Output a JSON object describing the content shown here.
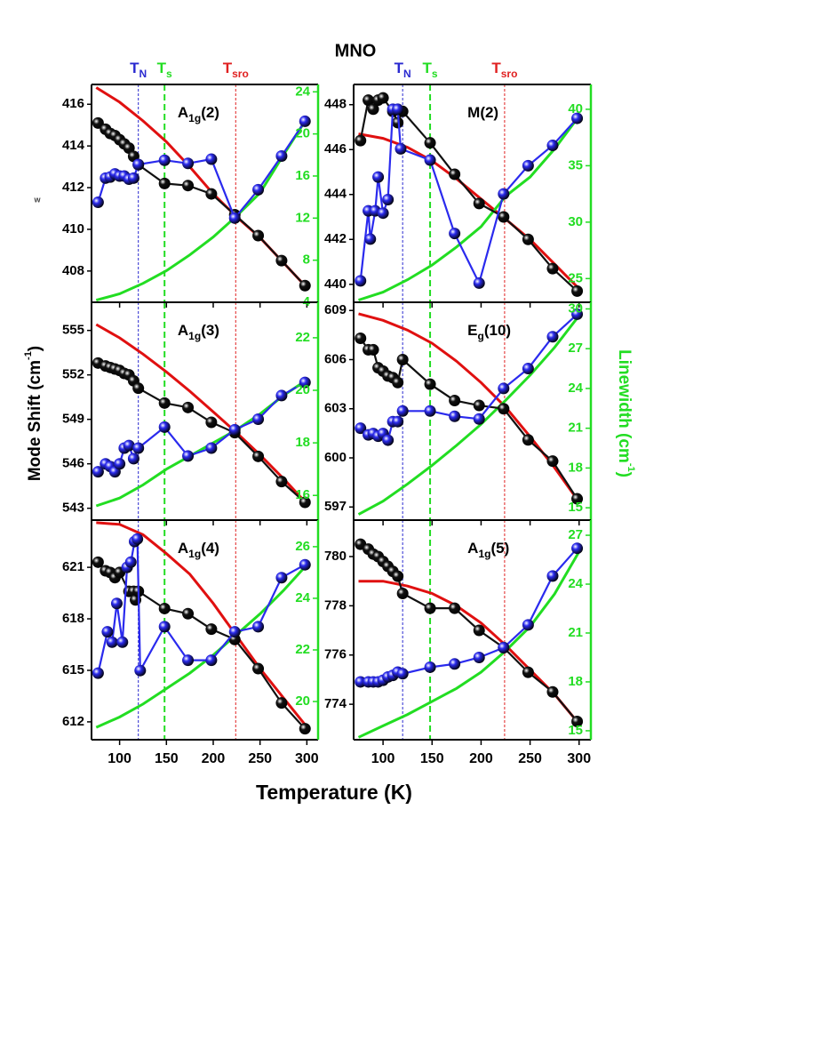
{
  "title": "MNO",
  "x_label": "Temperature (K)",
  "y_label": {
    "text": "Mode Shift (cm",
    "sup": "-1",
    "end": ")"
  },
  "y2_label": {
    "text": "Linewidth (cm",
    "sup": "-1",
    "end": ")"
  },
  "annotation": "w",
  "markers": [
    {
      "label": {
        "text": "T",
        "sub": "N"
      },
      "value": 120,
      "color": "#2a2ad0",
      "width": 1
    },
    {
      "label": {
        "text": "T",
        "sub": "s"
      },
      "value": 148,
      "color": "#22dd22",
      "width": 2
    },
    {
      "label": {
        "text": "T",
        "sub": "sro"
      },
      "value": 224,
      "color": "#e02020",
      "width": 1
    }
  ],
  "chart_data": [
    {
      "type": "line",
      "label": {
        "text": "A",
        "sub": "1g",
        "suffix": "(2)"
      },
      "xlim": [
        70,
        312
      ],
      "xticks": [
        100,
        150,
        200,
        250,
        300
      ],
      "show_xtick_labels": false,
      "ylim": [
        406.5,
        416.95
      ],
      "yticks": [
        408,
        410,
        412,
        414,
        416
      ],
      "y2lim": [
        4,
        24.7
      ],
      "y2ticks": [
        4,
        8,
        12,
        16,
        20,
        24
      ],
      "series": [
        {
          "style": "fit",
          "color": "#e01010",
          "x": [
            75,
            100,
            125,
            150,
            175,
            200,
            225,
            250,
            275,
            300
          ],
          "values": [
            416.8,
            416.1,
            415.2,
            414.2,
            413.0,
            411.7,
            410.6,
            409.6,
            408.4,
            407.2
          ]
        },
        {
          "style": "fit",
          "axis": "y2",
          "color": "#22dd22",
          "x": [
            75,
            100,
            125,
            150,
            175,
            200,
            225,
            250,
            275,
            300
          ],
          "values": [
            4.2,
            4.8,
            5.8,
            7.0,
            8.5,
            10.2,
            12.2,
            14.4,
            18.0,
            21.5
          ]
        },
        {
          "style": "points",
          "color": "#111111",
          "x": [
            77,
            85,
            90,
            95,
            100,
            105,
            110,
            115,
            120,
            148,
            173,
            198,
            223,
            248,
            273,
            298
          ],
          "values": [
            415.1,
            414.8,
            414.6,
            414.5,
            414.3,
            414.1,
            413.9,
            413.5,
            413.1,
            412.2,
            412.1,
            411.7,
            410.7,
            409.7,
            408.5,
            407.3
          ]
        },
        {
          "style": "points",
          "axis": "y2",
          "color": "#2a2aee",
          "x": [
            77,
            85,
            90,
            95,
            100,
            105,
            110,
            115,
            120,
            148,
            173,
            198,
            223,
            248,
            273,
            298
          ],
          "values": [
            13.5,
            15.8,
            15.9,
            16.2,
            16.0,
            16.0,
            15.7,
            15.8,
            17.1,
            17.5,
            17.2,
            17.6,
            12.0,
            14.7,
            17.9,
            21.2
          ]
        }
      ]
    },
    {
      "type": "line",
      "label": {
        "text": "M(2)"
      },
      "xlim": [
        70,
        312
      ],
      "xticks": [
        100,
        150,
        200,
        250,
        300
      ],
      "show_xtick_labels": false,
      "ylim": [
        439.2,
        448.9
      ],
      "yticks": [
        440,
        442,
        444,
        446,
        448
      ],
      "y2lim": [
        22.9,
        42.2
      ],
      "y2ticks": [
        25,
        30,
        35,
        40
      ],
      "series": [
        {
          "style": "fit",
          "color": "#e01010",
          "x": [
            75,
            100,
            125,
            150,
            175,
            200,
            225,
            250,
            275,
            300
          ],
          "values": [
            446.7,
            446.5,
            446.1,
            445.5,
            444.7,
            443.8,
            442.9,
            442.0,
            440.9,
            439.8
          ]
        },
        {
          "style": "fit",
          "axis": "y2",
          "color": "#22dd22",
          "x": [
            75,
            100,
            125,
            150,
            175,
            200,
            225,
            250,
            275,
            300
          ],
          "values": [
            23.1,
            23.8,
            24.9,
            26.2,
            27.8,
            29.6,
            32.3,
            34.0,
            36.5,
            39.4
          ]
        },
        {
          "style": "points",
          "color": "#111111",
          "x": [
            77,
            85,
            90,
            95,
            100,
            110,
            115,
            120,
            148,
            173,
            198,
            223,
            248,
            273,
            298
          ],
          "values": [
            446.4,
            448.2,
            447.8,
            448.2,
            448.3,
            447.7,
            447.2,
            447.7,
            446.3,
            444.9,
            443.6,
            443.0,
            442.0,
            440.7,
            439.7
          ]
        },
        {
          "style": "points",
          "axis": "y2",
          "color": "#2a2aee",
          "x": [
            77,
            85,
            87,
            92,
            95,
            100,
            105,
            110,
            115,
            118,
            148,
            173,
            198,
            223,
            248,
            273,
            298
          ],
          "values": [
            24.8,
            31.0,
            28.5,
            31.0,
            34.0,
            30.8,
            32.0,
            40.0,
            40.0,
            36.5,
            35.5,
            29.0,
            24.6,
            32.5,
            35.0,
            36.8,
            39.2
          ]
        }
      ]
    },
    {
      "type": "line",
      "label": {
        "text": "A",
        "sub": "1g",
        "suffix": "(3)"
      },
      "xlim": [
        70,
        312
      ],
      "xticks": [
        100,
        150,
        200,
        250,
        300
      ],
      "show_xtick_labels": false,
      "ylim": [
        542.2,
        556.9
      ],
      "yticks": [
        543,
        546,
        549,
        552,
        555
      ],
      "y2lim": [
        15.06,
        23.35
      ],
      "y2ticks": [
        16,
        18,
        20,
        22
      ],
      "series": [
        {
          "style": "fit",
          "color": "#e01010",
          "x": [
            75,
            100,
            125,
            150,
            175,
            200,
            225,
            250,
            275,
            300
          ],
          "values": [
            555.4,
            554.5,
            553.4,
            552.2,
            550.9,
            549.5,
            548.1,
            546.6,
            545.0,
            543.3
          ]
        },
        {
          "style": "fit",
          "axis": "y2",
          "color": "#22dd22",
          "x": [
            75,
            100,
            125,
            150,
            175,
            200,
            225,
            250,
            275,
            300
          ],
          "values": [
            15.6,
            15.9,
            16.4,
            17.0,
            17.5,
            18.0,
            18.5,
            19.1,
            19.8,
            20.4
          ]
        },
        {
          "style": "points",
          "color": "#111111",
          "x": [
            77,
            85,
            90,
            95,
            100,
            105,
            110,
            115,
            120,
            148,
            173,
            198,
            223,
            248,
            273,
            298
          ],
          "values": [
            552.8,
            552.6,
            552.5,
            552.4,
            552.3,
            552.1,
            552.0,
            551.6,
            551.1,
            550.1,
            549.8,
            548.8,
            548.1,
            546.5,
            544.8,
            543.4
          ]
        },
        {
          "style": "points",
          "axis": "y2",
          "color": "#2a2aee",
          "x": [
            77,
            85,
            90,
            95,
            100,
            105,
            110,
            115,
            120,
            148,
            173,
            198,
            223,
            248,
            273,
            298
          ],
          "values": [
            16.9,
            17.2,
            17.1,
            16.9,
            17.2,
            17.8,
            17.9,
            17.4,
            17.8,
            18.6,
            17.5,
            17.8,
            18.5,
            18.9,
            19.8,
            20.3
          ]
        }
      ]
    },
    {
      "type": "line",
      "label": {
        "text": "E",
        "sub": "g",
        "suffix": "(10)"
      },
      "xlim": [
        70,
        312
      ],
      "xticks": [
        100,
        150,
        200,
        250,
        300
      ],
      "show_xtick_labels": false,
      "ylim": [
        596.2,
        609.5
      ],
      "yticks": [
        597,
        600,
        603,
        606,
        609
      ],
      "y2lim": [
        14.07,
        30.5
      ],
      "y2ticks": [
        15,
        18,
        21,
        24,
        27,
        30
      ],
      "series": [
        {
          "style": "fit",
          "color": "#e01010",
          "x": [
            75,
            100,
            125,
            150,
            175,
            200,
            225,
            250,
            275,
            300
          ],
          "values": [
            608.8,
            608.4,
            607.8,
            607.0,
            605.9,
            604.6,
            603.1,
            601.3,
            599.4,
            597.3
          ]
        },
        {
          "style": "fit",
          "axis": "y2",
          "color": "#22dd22",
          "x": [
            75,
            100,
            125,
            150,
            175,
            200,
            225,
            250,
            275,
            300
          ],
          "values": [
            14.5,
            15.5,
            16.8,
            18.2,
            19.7,
            21.3,
            23.1,
            25.0,
            27.1,
            29.5
          ]
        },
        {
          "style": "points",
          "color": "#111111",
          "x": [
            77,
            85,
            90,
            95,
            100,
            105,
            110,
            115,
            120,
            148,
            173,
            198,
            223,
            248,
            273,
            298
          ],
          "values": [
            607.3,
            606.6,
            606.6,
            605.5,
            605.3,
            605.0,
            604.9,
            604.6,
            606.0,
            604.5,
            603.5,
            603.2,
            603.0,
            601.1,
            599.8,
            597.5
          ]
        },
        {
          "style": "points",
          "axis": "y2",
          "color": "#2a2aee",
          "x": [
            77,
            85,
            90,
            95,
            100,
            105,
            110,
            115,
            120,
            148,
            173,
            198,
            223,
            248,
            273,
            298
          ],
          "values": [
            21.0,
            20.5,
            20.6,
            20.4,
            20.6,
            20.1,
            21.5,
            21.5,
            22.3,
            22.3,
            21.9,
            21.7,
            24.0,
            25.5,
            27.9,
            29.6
          ]
        }
      ]
    },
    {
      "type": "line",
      "label": {
        "text": "A",
        "sub": "1g",
        "suffix": "(4)"
      },
      "xlim": [
        70,
        312
      ],
      "xticks": [
        100,
        150,
        200,
        250,
        300
      ],
      "show_xtick_labels": true,
      "ylim": [
        610.96,
        623.75
      ],
      "yticks": [
        612,
        615,
        618,
        621
      ],
      "y2lim": [
        18.52,
        27.03
      ],
      "y2ticks": [
        20,
        22,
        24,
        26
      ],
      "series": [
        {
          "style": "fit",
          "color": "#e01010",
          "x": [
            75,
            100,
            125,
            150,
            175,
            200,
            225,
            250,
            275,
            300
          ],
          "values": [
            623.6,
            623.5,
            622.9,
            621.8,
            620.6,
            618.9,
            617.0,
            615.1,
            613.4,
            611.7
          ]
        },
        {
          "style": "fit",
          "axis": "y2",
          "color": "#22dd22",
          "x": [
            75,
            100,
            125,
            150,
            175,
            200,
            225,
            250,
            275,
            300
          ],
          "values": [
            19.0,
            19.4,
            19.9,
            20.5,
            21.1,
            21.8,
            22.6,
            23.4,
            24.3,
            25.3
          ]
        },
        {
          "style": "points",
          "color": "#111111",
          "x": [
            77,
            85,
            90,
            95,
            100,
            110,
            115,
            117,
            120,
            148,
            173,
            198,
            223,
            248,
            273,
            298
          ],
          "values": [
            621.3,
            620.8,
            620.7,
            620.4,
            620.7,
            619.6,
            619.6,
            619.1,
            619.6,
            618.6,
            618.3,
            617.4,
            616.8,
            615.1,
            613.1,
            611.6
          ]
        },
        {
          "style": "points",
          "axis": "y2",
          "color": "#2a2aee",
          "x": [
            77,
            87,
            92,
            97,
            103,
            108,
            112,
            116,
            119,
            122,
            148,
            173,
            198,
            223,
            248,
            273,
            298
          ],
          "values": [
            21.1,
            22.7,
            22.3,
            23.8,
            22.3,
            25.2,
            25.4,
            26.2,
            26.3,
            21.2,
            22.9,
            21.6,
            21.6,
            22.7,
            22.9,
            24.8,
            25.3
          ]
        }
      ]
    },
    {
      "type": "line",
      "label": {
        "text": "A",
        "sub": "1g",
        "suffix": "(5)"
      },
      "xlim": [
        70,
        312
      ],
      "xticks": [
        100,
        150,
        200,
        250,
        300
      ],
      "show_xtick_labels": true,
      "ylim": [
        772.56,
        781.48
      ],
      "yticks": [
        774,
        776,
        778,
        780
      ],
      "y2lim": [
        14.45,
        27.93
      ],
      "y2ticks": [
        15,
        18,
        21,
        24,
        27
      ],
      "series": [
        {
          "style": "fit",
          "color": "#e01010",
          "x": [
            75,
            100,
            125,
            150,
            175,
            200,
            225,
            250,
            275,
            300
          ],
          "values": [
            779.0,
            779.0,
            778.8,
            778.5,
            778.0,
            777.3,
            776.4,
            775.4,
            774.4,
            773.2
          ]
        },
        {
          "style": "fit",
          "axis": "y2",
          "color": "#22dd22",
          "x": [
            75,
            100,
            125,
            150,
            175,
            200,
            225,
            250,
            275,
            300
          ],
          "values": [
            14.6,
            15.3,
            16.0,
            16.8,
            17.6,
            18.6,
            19.9,
            21.4,
            23.4,
            26.0
          ]
        },
        {
          "style": "points",
          "color": "#111111",
          "x": [
            77,
            85,
            90,
            95,
            100,
            105,
            110,
            115,
            120,
            148,
            173,
            198,
            223,
            248,
            273,
            298
          ],
          "values": [
            780.5,
            780.3,
            780.1,
            780.0,
            779.8,
            779.6,
            779.4,
            779.2,
            778.5,
            777.9,
            777.9,
            777.0,
            776.3,
            775.3,
            774.5,
            773.3
          ]
        },
        {
          "style": "points",
          "axis": "y2",
          "color": "#2a2aee",
          "x": [
            77,
            85,
            90,
            95,
            100,
            105,
            110,
            115,
            120,
            148,
            173,
            198,
            223,
            248,
            273,
            298
          ],
          "values": [
            18.0,
            18.0,
            18.0,
            18.0,
            18.1,
            18.3,
            18.4,
            18.6,
            18.5,
            18.9,
            19.1,
            19.5,
            20.1,
            21.5,
            24.5,
            26.2
          ]
        }
      ]
    }
  ]
}
